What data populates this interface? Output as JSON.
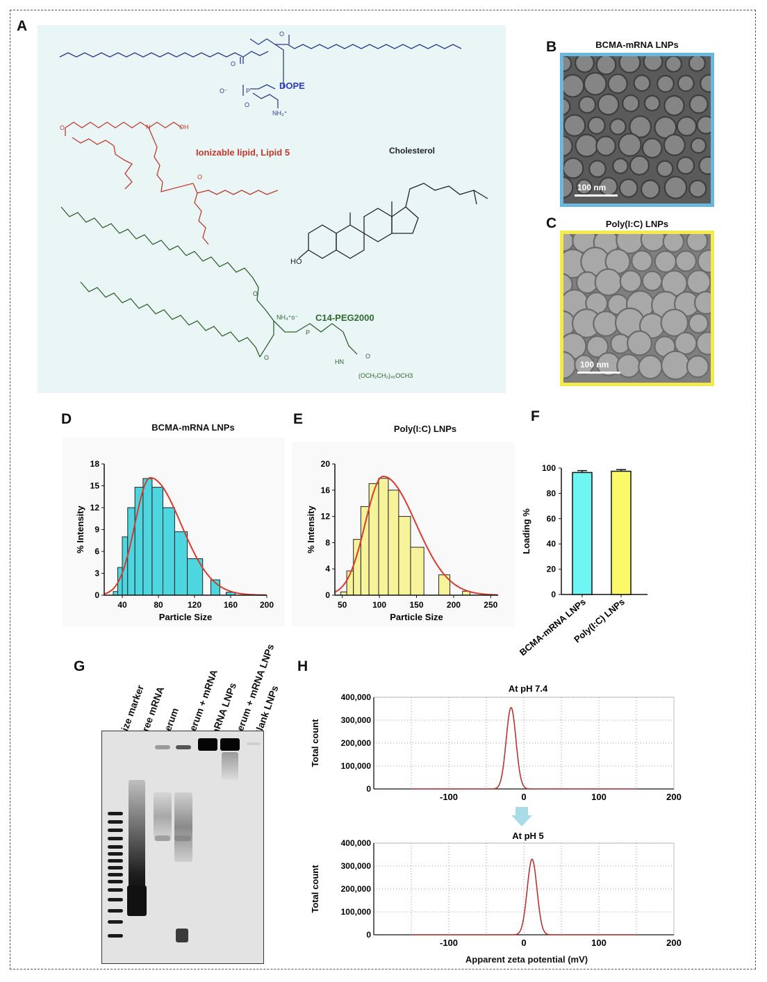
{
  "panels": {
    "a": {
      "letter": "A",
      "molecules": {
        "dope": "DOPE",
        "lipid5": "Ionizable lipid, Lipid 5",
        "chol": "Cholesterol",
        "peg": "C14-PEG2000"
      },
      "chem_text": {
        "oh": "OH",
        "nh3": "NH₃⁺",
        "ho": "HO",
        "nh4": "NH₄⁺o⁻",
        "hn": "HN",
        "o": "O",
        "p": "P",
        "n": "N",
        "oneg": "O⁻",
        "peg_chain": "(OCH₂CH₂)₄₅OCH3"
      }
    },
    "b": {
      "letter": "B",
      "title": "BCMA-mRNA LNPs",
      "scale": "100 nm",
      "border_color": "#6ab7dd"
    },
    "c": {
      "letter": "C",
      "title": "Poly(I:C) LNPs",
      "scale": "100 nm",
      "border_color": "#f4ea4a"
    },
    "d": {
      "letter": "D",
      "title": "BCMA-mRNA LNPs"
    },
    "e": {
      "letter": "E",
      "title": "Poly(I:C) LNPs"
    },
    "f": {
      "letter": "F"
    },
    "g": {
      "letter": "G",
      "lanes": [
        "Size marker",
        "Free mRNA",
        "Serum",
        "Serum + mRNA",
        "mRNA LNPs",
        "Serum + mRNA LNPs",
        "Blank LNPs"
      ]
    },
    "h": {
      "letter": "H"
    }
  },
  "chart_data": [
    {
      "id": "D",
      "type": "bar",
      "title": "BCMA-mRNA LNPs",
      "xlabel": "Particle Size",
      "ylabel": "% Intensity",
      "xlim": [
        20,
        200
      ],
      "ylim": [
        0,
        18
      ],
      "xticks": [
        40,
        80,
        120,
        160,
        200
      ],
      "yticks": [
        0,
        3,
        6,
        9,
        12,
        15,
        18
      ],
      "bar_color": "#4dd6e0",
      "fit_color": "#d83a2e",
      "bins": [
        {
          "from": 30,
          "to": 35,
          "value": 0.5
        },
        {
          "from": 35,
          "to": 40,
          "value": 3.8
        },
        {
          "from": 40,
          "to": 46,
          "value": 8.0
        },
        {
          "from": 46,
          "to": 54,
          "value": 12.0
        },
        {
          "from": 54,
          "to": 63,
          "value": 14.8
        },
        {
          "from": 63,
          "to": 73,
          "value": 16.0
        },
        {
          "from": 73,
          "to": 85,
          "value": 14.8
        },
        {
          "from": 85,
          "to": 98,
          "value": 12.0
        },
        {
          "from": 98,
          "to": 112,
          "value": 8.7
        },
        {
          "from": 112,
          "to": 129,
          "value": 5.0
        },
        {
          "from": 138,
          "to": 148,
          "value": 2.1
        },
        {
          "from": 155,
          "to": 165,
          "value": 0.4
        }
      ],
      "fit": {
        "peak_x": 71,
        "peak_y": 16.1,
        "sigma_left": 17,
        "sigma_right": 34
      }
    },
    {
      "id": "E",
      "type": "bar",
      "title": "Poly(I:C) LNPs",
      "xlabel": "Particle Size",
      "ylabel": "% Intensity",
      "xlim": [
        40,
        260
      ],
      "ylim": [
        0,
        20
      ],
      "xticks": [
        50,
        100,
        150,
        200,
        250
      ],
      "yticks": [
        0,
        4,
        8,
        12,
        16,
        20
      ],
      "bar_color": "#f7f39a",
      "fit_color": "#d83a2e",
      "bins": [
        {
          "from": 48,
          "to": 56,
          "value": 0.5
        },
        {
          "from": 56,
          "to": 65,
          "value": 3.7
        },
        {
          "from": 65,
          "to": 75,
          "value": 8.5
        },
        {
          "from": 75,
          "to": 86,
          "value": 13.5
        },
        {
          "from": 86,
          "to": 99,
          "value": 17.0
        },
        {
          "from": 99,
          "to": 112,
          "value": 17.8
        },
        {
          "from": 112,
          "to": 126,
          "value": 16.0
        },
        {
          "from": 126,
          "to": 142,
          "value": 12.0
        },
        {
          "from": 142,
          "to": 160,
          "value": 7.3
        },
        {
          "from": 180,
          "to": 195,
          "value": 3.1
        },
        {
          "from": 212,
          "to": 222,
          "value": 0.6
        }
      ],
      "fit": {
        "peak_x": 105,
        "peak_y": 18.1,
        "sigma_left": 24,
        "sigma_right": 44
      }
    },
    {
      "id": "F",
      "type": "bar",
      "ylabel": "Loading %",
      "ylim": [
        0,
        100
      ],
      "yticks": [
        0,
        20,
        40,
        60,
        80,
        100
      ],
      "categories": [
        "BCMA-mRNA LNPs",
        "Poly(I:C) LNPs"
      ],
      "values": [
        96.5,
        97.5
      ],
      "errors": [
        1.5,
        1.3
      ],
      "colors": [
        "#6df6f3",
        "#fbf96a"
      ]
    },
    {
      "id": "H1",
      "type": "line",
      "title": "At pH 7.4",
      "ylabel": "Total count",
      "xlim": [
        -200,
        200
      ],
      "ylim": [
        0,
        400000
      ],
      "xticks": [
        -100,
        0,
        100,
        200
      ],
      "xtick_labels": [
        "-100",
        "0",
        "100",
        "200"
      ],
      "yticks": [
        0,
        100000,
        200000,
        300000,
        400000
      ],
      "ytick_labels": [
        "0",
        "100,000",
        "200,000",
        "300,000",
        "400,000"
      ],
      "grid": true,
      "line_color": "#b5352c",
      "peak_x": -17,
      "peak_y": 355000,
      "sigma": 6.5
    },
    {
      "id": "H2",
      "type": "line",
      "title": "At pH 5",
      "xlabel": "Apparent zeta potential (mV)",
      "ylabel": "Total count",
      "xlim": [
        -200,
        200
      ],
      "ylim": [
        0,
        400000
      ],
      "xticks": [
        -100,
        0,
        100,
        200
      ],
      "xtick_labels": [
        "-100",
        "0",
        "100",
        "200"
      ],
      "yticks": [
        0,
        100000,
        200000,
        300000,
        400000
      ],
      "ytick_labels": [
        "0",
        "100,000",
        "200,000",
        "300,000",
        "400,000"
      ],
      "grid": true,
      "line_color": "#b5352c",
      "peak_x": 11,
      "peak_y": 330000,
      "sigma": 6.5
    }
  ]
}
